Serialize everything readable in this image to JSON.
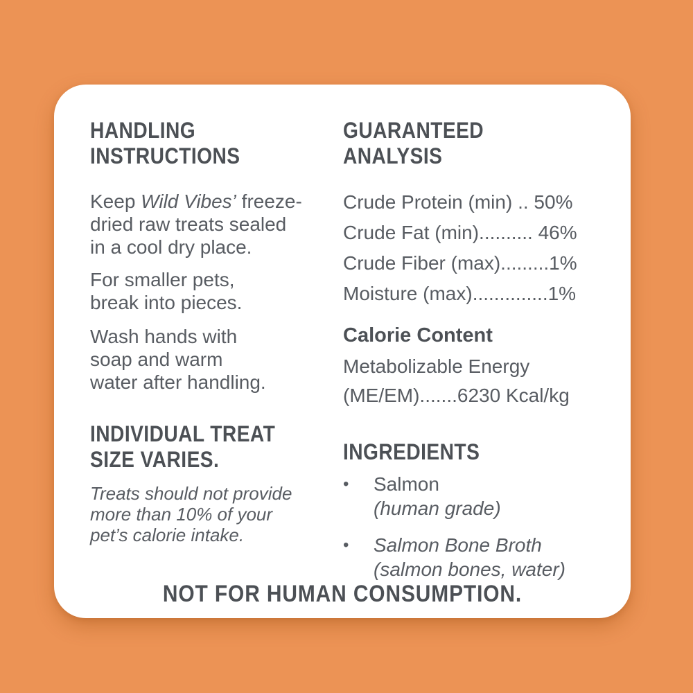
{
  "colors": {
    "background": "#EC9355",
    "card": "#FFFFFF",
    "heading_text": "#4C5055",
    "body_text": "#585C62"
  },
  "left": {
    "handling_title": "HANDLING\nINSTRUCTIONS",
    "p1_prefix": "Keep ",
    "p1_brand_italic": "Wild Vibes’",
    "p1_suffix": " freeze-\ndried raw treats sealed\nin a cool dry place.",
    "p2": "For smaller pets,\nbreak into pieces.",
    "p3": "Wash hands with\nsoap and warm\nwater after handling.",
    "treat_size_title": "INDIVIDUAL TREAT\nSIZE VARIES.",
    "treat_size_note": "Treats should not provide\nmore than 10% of your\npet’s calorie intake."
  },
  "right": {
    "analysis_title": "GUARANTEED ANALYSIS",
    "analysis_rows": [
      "Crude Protein (min) .. 50%",
      "Crude Fat (min).......... 46%",
      "Crude Fiber (max).........1%",
      "Moisture (max)..............1%"
    ],
    "calorie_title": "Calorie Content",
    "calorie_line": "Metabolizable Energy\n(ME/EM).......6230 Kcal/kg",
    "ingredients_title": "INGREDIENTS",
    "bullet_char": "•",
    "ingredients": [
      {
        "name": "Salmon",
        "detail": "(human grade)"
      },
      {
        "name": "Salmon Bone Broth",
        "detail": "(salmon bones, water)"
      }
    ]
  },
  "footer": {
    "warning": "NOT FOR HUMAN CONSUMPTION."
  }
}
